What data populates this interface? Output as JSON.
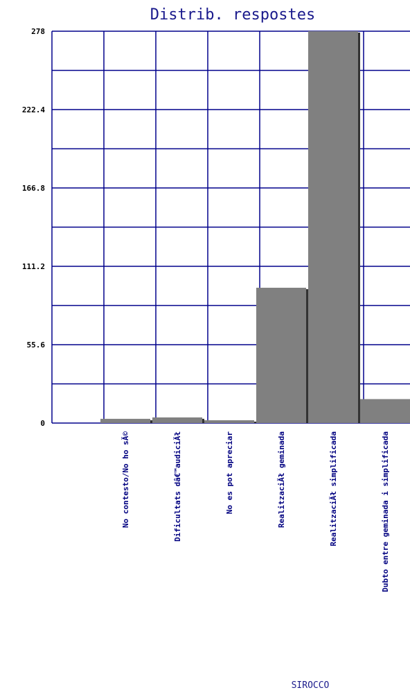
{
  "chart_data": {
    "type": "bar",
    "title": "Distrib. respostes",
    "xlabel": "SIROCCO",
    "ylabel": "",
    "ylim": [
      0,
      278
    ],
    "yticks": [
      "0",
      "55.6",
      "111.2",
      "166.8",
      "222.4",
      "278"
    ],
    "grid": true,
    "categories": [
      "No contesto/No ho sĂ©",
      "Dificultats dâ€™audiciĂł",
      "No es pot apreciar",
      "RealitzaciĂł geminada",
      "RealitzaciĂł simplificada",
      "Dubto entre geminada i simplificada"
    ],
    "values": [
      3,
      4,
      2,
      96,
      278,
      17
    ],
    "colors": {
      "bar": "#808080",
      "bar_shadow": "#333333",
      "grid": "#00008b",
      "title": "#1a1a8c",
      "category_label": "#000080"
    }
  }
}
